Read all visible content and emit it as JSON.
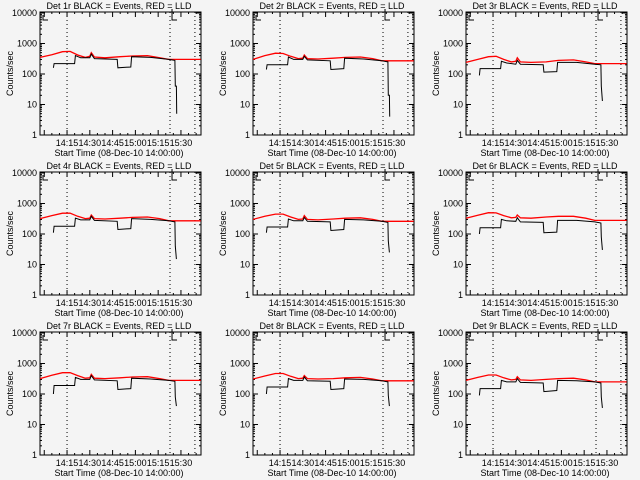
{
  "colors": {
    "events": "#000000",
    "lld": "#ff0000",
    "background": "#f4f4f4"
  },
  "chart_data": {
    "type": "line",
    "xlabel": "Start Time (08-Dec-10 14:00:00)",
    "ylabel": "Counts/sec",
    "x_units": "minutes after 14:00",
    "xlim": [
      -2.8,
      103.2
    ],
    "ylim": [
      1,
      10000
    ],
    "yscale": "log",
    "x_ticks": [
      {
        "value": 15,
        "label": "14:15"
      },
      {
        "value": 30,
        "label": "14:30"
      },
      {
        "value": 45,
        "label": "14:45"
      },
      {
        "value": 60,
        "label": "15:00"
      },
      {
        "value": 75,
        "label": "15:15"
      },
      {
        "value": 90,
        "label": "15:30"
      }
    ],
    "y_ticks": [
      {
        "value": 1,
        "label": "1"
      },
      {
        "value": 10,
        "label": "10"
      },
      {
        "value": 100,
        "label": "100"
      },
      {
        "value": 1000,
        "label": "1000"
      },
      {
        "value": 10000,
        "label": "10000"
      }
    ],
    "dotted_lines_minutes": [
      15,
      82.8,
      99.2
    ],
    "panels": [
      {
        "title": "Det 1r BLACK = Events, RED = LLD",
        "lld": [
          [
            -2.8,
            350
          ],
          [
            5,
            430
          ],
          [
            12,
            540
          ],
          [
            17,
            550
          ],
          [
            22,
            420
          ],
          [
            27,
            350
          ],
          [
            30,
            380
          ],
          [
            31,
            500
          ],
          [
            33,
            360
          ],
          [
            40,
            340
          ],
          [
            50,
            370
          ],
          [
            58,
            390
          ],
          [
            68,
            400
          ],
          [
            76,
            340
          ],
          [
            82,
            300
          ],
          [
            103,
            300
          ]
        ],
        "events": [
          [
            6,
            160
          ],
          [
            6.5,
            220
          ],
          [
            20,
            220
          ],
          [
            20.5,
            400
          ],
          [
            24,
            340
          ],
          [
            30,
            340
          ],
          [
            31,
            450
          ],
          [
            33,
            320
          ],
          [
            48,
            300
          ],
          [
            48.5,
            160
          ],
          [
            57,
            170
          ],
          [
            57.5,
            370
          ],
          [
            70,
            350
          ],
          [
            82,
            300
          ],
          [
            86,
            280
          ],
          [
            86.3,
            40
          ],
          [
            87,
            40
          ],
          [
            87.2,
            5
          ]
        ]
      },
      {
        "title": "Det 2r BLACK = Events, RED = LLD",
        "lld": [
          [
            -2.8,
            300
          ],
          [
            5,
            400
          ],
          [
            12,
            480
          ],
          [
            17,
            470
          ],
          [
            22,
            380
          ],
          [
            27,
            320
          ],
          [
            30,
            330
          ],
          [
            31,
            420
          ],
          [
            33,
            320
          ],
          [
            40,
            310
          ],
          [
            50,
            330
          ],
          [
            58,
            350
          ],
          [
            68,
            360
          ],
          [
            76,
            320
          ],
          [
            82,
            270
          ],
          [
            103,
            270
          ]
        ],
        "events": [
          [
            6,
            140
          ],
          [
            6.5,
            200
          ],
          [
            20,
            200
          ],
          [
            20.5,
            360
          ],
          [
            24,
            300
          ],
          [
            30,
            300
          ],
          [
            31,
            380
          ],
          [
            33,
            290
          ],
          [
            48,
            270
          ],
          [
            48.5,
            140
          ],
          [
            57,
            150
          ],
          [
            57.5,
            330
          ],
          [
            70,
            310
          ],
          [
            82,
            270
          ],
          [
            86,
            250
          ],
          [
            86.3,
            20
          ],
          [
            87,
            20
          ],
          [
            87.2,
            4
          ]
        ]
      },
      {
        "title": "Det 3r BLACK = Events, RED = LLD",
        "lld": [
          [
            -2.8,
            240
          ],
          [
            5,
            300
          ],
          [
            12,
            370
          ],
          [
            17,
            380
          ],
          [
            22,
            300
          ],
          [
            27,
            250
          ],
          [
            30,
            260
          ],
          [
            31,
            340
          ],
          [
            33,
            250
          ],
          [
            40,
            240
          ],
          [
            50,
            250
          ],
          [
            58,
            280
          ],
          [
            68,
            290
          ],
          [
            76,
            250
          ],
          [
            82,
            220
          ],
          [
            103,
            220
          ]
        ],
        "events": [
          [
            6,
            90
          ],
          [
            6.5,
            150
          ],
          [
            20,
            150
          ],
          [
            20.5,
            260
          ],
          [
            24,
            230
          ],
          [
            30,
            210
          ],
          [
            31,
            280
          ],
          [
            33,
            210
          ],
          [
            48,
            200
          ],
          [
            48.5,
            115
          ],
          [
            57,
            120
          ],
          [
            57.5,
            240
          ],
          [
            70,
            240
          ],
          [
            82,
            210
          ],
          [
            86,
            200
          ],
          [
            86.3,
            40
          ],
          [
            87,
            13
          ]
        ]
      },
      {
        "title": "Det 4r BLACK = Events, RED = LLD",
        "lld": [
          [
            -2.8,
            320
          ],
          [
            5,
            400
          ],
          [
            12,
            480
          ],
          [
            17,
            480
          ],
          [
            22,
            380
          ],
          [
            27,
            320
          ],
          [
            30,
            330
          ],
          [
            31,
            420
          ],
          [
            33,
            320
          ],
          [
            40,
            310
          ],
          [
            50,
            330
          ],
          [
            58,
            350
          ],
          [
            68,
            360
          ],
          [
            76,
            320
          ],
          [
            82,
            270
          ],
          [
            103,
            270
          ]
        ],
        "events": [
          [
            6,
            110
          ],
          [
            6.5,
            180
          ],
          [
            20,
            180
          ],
          [
            20.5,
            330
          ],
          [
            24,
            290
          ],
          [
            30,
            290
          ],
          [
            31,
            380
          ],
          [
            33,
            280
          ],
          [
            48,
            260
          ],
          [
            48.5,
            140
          ],
          [
            57,
            150
          ],
          [
            57.5,
            320
          ],
          [
            70,
            300
          ],
          [
            82,
            270
          ],
          [
            86,
            250
          ],
          [
            86.3,
            40
          ],
          [
            87,
            15
          ]
        ]
      },
      {
        "title": "Det 5r BLACK = Events, RED = LLD",
        "lld": [
          [
            -2.8,
            300
          ],
          [
            5,
            380
          ],
          [
            12,
            450
          ],
          [
            17,
            450
          ],
          [
            22,
            360
          ],
          [
            27,
            300
          ],
          [
            30,
            310
          ],
          [
            31,
            400
          ],
          [
            33,
            300
          ],
          [
            40,
            290
          ],
          [
            50,
            310
          ],
          [
            58,
            330
          ],
          [
            68,
            340
          ],
          [
            76,
            300
          ],
          [
            82,
            260
          ],
          [
            103,
            260
          ]
        ],
        "events": [
          [
            6,
            110
          ],
          [
            6.5,
            170
          ],
          [
            20,
            170
          ],
          [
            20.5,
            310
          ],
          [
            24,
            270
          ],
          [
            30,
            270
          ],
          [
            31,
            350
          ],
          [
            33,
            260
          ],
          [
            48,
            250
          ],
          [
            48.5,
            130
          ],
          [
            57,
            140
          ],
          [
            57.5,
            300
          ],
          [
            70,
            290
          ],
          [
            82,
            260
          ],
          [
            86,
            240
          ],
          [
            86.3,
            60
          ],
          [
            87,
            25
          ]
        ]
      },
      {
        "title": "Det 6r BLACK = Events, RED = LLD",
        "lld": [
          [
            -2.8,
            330
          ],
          [
            5,
            410
          ],
          [
            12,
            500
          ],
          [
            17,
            490
          ],
          [
            22,
            400
          ],
          [
            27,
            340
          ],
          [
            30,
            350
          ],
          [
            31,
            420
          ],
          [
            33,
            340
          ],
          [
            40,
            330
          ],
          [
            50,
            360
          ],
          [
            58,
            380
          ],
          [
            68,
            380
          ],
          [
            76,
            330
          ],
          [
            82,
            280
          ],
          [
            103,
            280
          ]
        ],
        "events": [
          [
            6,
            100
          ],
          [
            6.5,
            160
          ],
          [
            20,
            160
          ],
          [
            20.5,
            300
          ],
          [
            24,
            270
          ],
          [
            30,
            260
          ],
          [
            31,
            340
          ],
          [
            33,
            250
          ],
          [
            48,
            240
          ],
          [
            48.5,
            110
          ],
          [
            57,
            115
          ],
          [
            57.5,
            280
          ],
          [
            70,
            280
          ],
          [
            82,
            250
          ],
          [
            86,
            230
          ],
          [
            86.3,
            80
          ],
          [
            87,
            30
          ]
        ]
      },
      {
        "title": "Det 7r BLACK = Events, RED = LLD",
        "lld": [
          [
            -2.8,
            320
          ],
          [
            5,
            410
          ],
          [
            12,
            500
          ],
          [
            17,
            500
          ],
          [
            22,
            400
          ],
          [
            27,
            330
          ],
          [
            30,
            340
          ],
          [
            31,
            440
          ],
          [
            33,
            330
          ],
          [
            40,
            320
          ],
          [
            50,
            340
          ],
          [
            58,
            360
          ],
          [
            68,
            370
          ],
          [
            76,
            320
          ],
          [
            82,
            280
          ],
          [
            103,
            280
          ]
        ],
        "events": [
          [
            6,
            100
          ],
          [
            6.5,
            190
          ],
          [
            20,
            190
          ],
          [
            20.5,
            350
          ],
          [
            24,
            300
          ],
          [
            30,
            300
          ],
          [
            31,
            400
          ],
          [
            33,
            290
          ],
          [
            48,
            270
          ],
          [
            48.5,
            140
          ],
          [
            57,
            150
          ],
          [
            57.5,
            330
          ],
          [
            70,
            310
          ],
          [
            82,
            280
          ],
          [
            86,
            260
          ],
          [
            86.3,
            80
          ],
          [
            87,
            40
          ]
        ]
      },
      {
        "title": "Det 8r BLACK = Events, RED = LLD",
        "lld": [
          [
            -2.8,
            310
          ],
          [
            5,
            390
          ],
          [
            12,
            470
          ],
          [
            17,
            470
          ],
          [
            22,
            380
          ],
          [
            27,
            320
          ],
          [
            30,
            330
          ],
          [
            31,
            400
          ],
          [
            33,
            320
          ],
          [
            40,
            310
          ],
          [
            50,
            320
          ],
          [
            58,
            340
          ],
          [
            68,
            350
          ],
          [
            76,
            310
          ],
          [
            82,
            270
          ],
          [
            103,
            270
          ]
        ],
        "events": [
          [
            6,
            100
          ],
          [
            6.5,
            170
          ],
          [
            20,
            170
          ],
          [
            20.5,
            320
          ],
          [
            24,
            280
          ],
          [
            30,
            280
          ],
          [
            31,
            360
          ],
          [
            33,
            270
          ],
          [
            48,
            260
          ],
          [
            48.5,
            140
          ],
          [
            57,
            150
          ],
          [
            57.5,
            310
          ],
          [
            70,
            300
          ],
          [
            82,
            270
          ],
          [
            86,
            250
          ],
          [
            86.3,
            90
          ],
          [
            87,
            40
          ]
        ]
      },
      {
        "title": "Det 9r BLACK = Events, RED = LLD",
        "lld": [
          [
            -2.8,
            280
          ],
          [
            5,
            350
          ],
          [
            12,
            420
          ],
          [
            17,
            420
          ],
          [
            22,
            340
          ],
          [
            27,
            290
          ],
          [
            30,
            300
          ],
          [
            31,
            370
          ],
          [
            33,
            290
          ],
          [
            40,
            280
          ],
          [
            50,
            300
          ],
          [
            58,
            320
          ],
          [
            68,
            330
          ],
          [
            76,
            290
          ],
          [
            82,
            250
          ],
          [
            103,
            250
          ]
        ],
        "events": [
          [
            6,
            90
          ],
          [
            6.5,
            150
          ],
          [
            20,
            150
          ],
          [
            20.5,
            280
          ],
          [
            24,
            250
          ],
          [
            30,
            250
          ],
          [
            31,
            320
          ],
          [
            33,
            240
          ],
          [
            48,
            230
          ],
          [
            48.5,
            120
          ],
          [
            57,
            130
          ],
          [
            57.5,
            280
          ],
          [
            70,
            270
          ],
          [
            82,
            250
          ],
          [
            86,
            230
          ],
          [
            86.3,
            80
          ],
          [
            87,
            35
          ]
        ]
      }
    ]
  }
}
